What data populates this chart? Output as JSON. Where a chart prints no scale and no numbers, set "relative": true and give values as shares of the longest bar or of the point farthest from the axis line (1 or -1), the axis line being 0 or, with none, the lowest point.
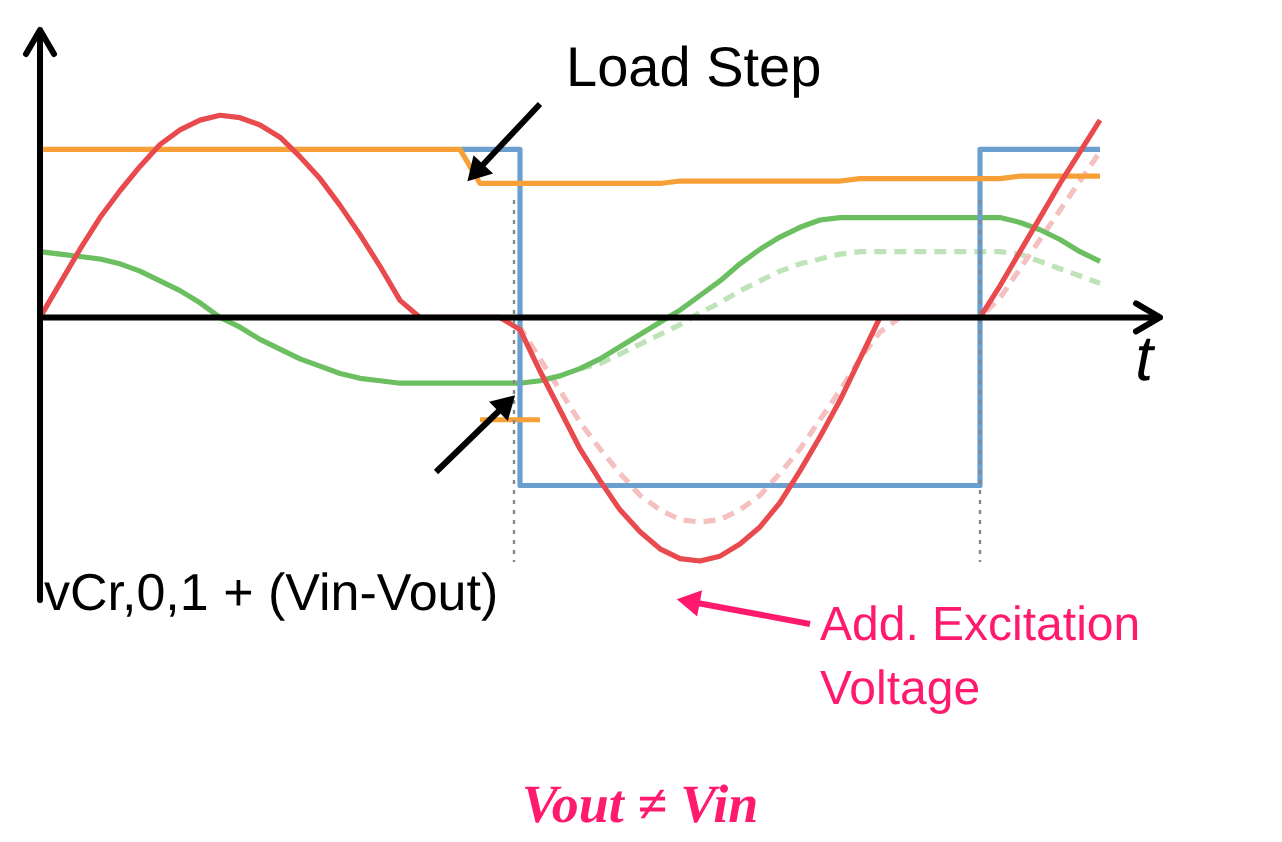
{
  "chart_data": {
    "type": "line",
    "relative": true,
    "xlabel": "t",
    "categories": [
      null,
      null,
      null,
      null,
      null,
      null,
      null,
      null,
      null,
      null,
      null,
      null,
      null,
      null,
      null,
      null,
      null,
      null,
      null,
      null,
      null,
      null,
      null,
      null,
      null,
      null,
      null,
      null,
      null,
      null,
      null,
      null,
      null,
      null,
      null,
      null,
      null,
      null,
      null,
      null,
      null,
      null,
      null,
      null,
      null,
      null,
      null,
      null,
      null,
      null,
      null,
      null,
      null,
      null
    ],
    "series": [
      {
        "line_style": "dashed",
        "color": "#bfe3b8",
        "values": [
          null,
          null,
          null,
          null,
          null,
          null,
          null,
          null,
          null,
          null,
          null,
          null,
          null,
          null,
          null,
          null,
          null,
          null,
          null,
          null,
          null,
          null,
          null,
          null,
          null,
          null,
          null,
          -0.21,
          -0.19,
          -0.15,
          -0.11,
          -0.07,
          -0.03,
          0.02,
          0.06,
          0.11,
          0.15,
          0.19,
          0.22,
          0.24,
          0.26,
          0.27,
          0.27,
          0.27,
          0.27,
          0.27,
          0.27,
          0.27,
          0.27,
          0.26,
          0.23,
          0.2,
          0.17,
          0.14
        ]
      },
      {
        "line_style": "dashed",
        "color": "#f5c0c0",
        "values": [
          null,
          null,
          null,
          null,
          null,
          null,
          null,
          null,
          null,
          null,
          null,
          null,
          null,
          null,
          null,
          null,
          null,
          null,
          null,
          null,
          null,
          null,
          null,
          0,
          -0.04,
          -0.17,
          -0.3,
          -0.43,
          -0.54,
          -0.64,
          -0.73,
          -0.79,
          -0.83,
          -0.84,
          -0.83,
          -0.79,
          -0.73,
          -0.64,
          -0.54,
          -0.42,
          -0.3,
          -0.17,
          -0.06,
          0,
          0,
          0,
          0,
          0,
          0.08,
          0.2,
          0.32,
          0.44,
          0.56,
          0.68
        ]
      },
      {
        "color": "#6cbf60",
        "values": [
          0.27,
          0.26,
          0.25,
          0.24,
          0.22,
          0.19,
          0.15,
          0.11,
          0.06,
          0.0,
          -0.04,
          -0.09,
          -0.13,
          -0.17,
          -0.2,
          -0.23,
          -0.25,
          -0.26,
          -0.27,
          -0.27,
          -0.27,
          -0.27,
          -0.27,
          -0.27,
          -0.27,
          -0.26,
          -0.24,
          -0.21,
          -0.17,
          -0.12,
          -0.07,
          -0.02,
          0.03,
          0.09,
          0.15,
          0.22,
          0.28,
          0.33,
          0.37,
          0.4,
          0.41,
          0.41,
          0.41,
          0.41,
          0.41,
          0.41,
          0.41,
          0.41,
          0.41,
          0.39,
          0.36,
          0.32,
          0.27,
          0.23
        ]
      },
      {
        "type": "step",
        "color": "#6b9fd0",
        "values": [
          null,
          null,
          null,
          null,
          null,
          null,
          null,
          null,
          null,
          null,
          null,
          null,
          null,
          null,
          null,
          null,
          null,
          null,
          null,
          null,
          null,
          0.69,
          0.69,
          0.69,
          -0.69,
          -0.69,
          -0.69,
          -0.69,
          -0.69,
          -0.69,
          -0.69,
          -0.69,
          -0.69,
          -0.69,
          -0.69,
          -0.69,
          -0.69,
          -0.69,
          -0.69,
          -0.69,
          -0.69,
          -0.69,
          -0.69,
          -0.69,
          -0.69,
          -0.69,
          -0.69,
          0.69,
          0.69,
          0.69,
          0.69,
          0.69,
          0.69,
          0.69
        ]
      },
      {
        "color": "#f7a038",
        "values": [
          0.69,
          0.69,
          0.69,
          0.69,
          0.69,
          0.69,
          0.69,
          0.69,
          0.69,
          0.69,
          0.69,
          0.69,
          0.69,
          0.69,
          0.69,
          0.69,
          0.69,
          0.69,
          0.69,
          0.69,
          0.69,
          0.69,
          0.55,
          0.55,
          0.55,
          0.55,
          0.55,
          0.55,
          0.55,
          0.55,
          0.55,
          0.55,
          0.56,
          0.56,
          0.56,
          0.56,
          0.56,
          0.56,
          0.56,
          0.56,
          0.56,
          0.57,
          0.57,
          0.57,
          0.57,
          0.57,
          0.57,
          0.57,
          0.57,
          0.58,
          0.58,
          0.58,
          0.58,
          0.58
        ]
      },
      {
        "color": "#e84a4d",
        "values": [
          0,
          0.14,
          0.28,
          0.41,
          0.52,
          0.62,
          0.71,
          0.77,
          0.81,
          0.83,
          0.82,
          0.79,
          0.74,
          0.66,
          0.57,
          0.46,
          0.34,
          0.21,
          0.07,
          0,
          0,
          0,
          0,
          0,
          -0.05,
          -0.22,
          -0.38,
          -0.54,
          -0.67,
          -0.79,
          -0.88,
          -0.95,
          -0.99,
          -1,
          -0.98,
          -0.93,
          -0.86,
          -0.76,
          -0.63,
          -0.49,
          -0.34,
          -0.17,
          0,
          0,
          0,
          0,
          0,
          0,
          0.13,
          0.27,
          0.41,
          0.55,
          0.68,
          0.81
        ]
      },
      {
        "color": "#f7a038",
        "values": [
          null,
          null,
          null,
          null,
          null,
          null,
          null,
          null,
          null,
          null,
          null,
          null,
          null,
          null,
          null,
          null,
          null,
          null,
          null,
          null,
          null,
          null,
          -0.42,
          -0.42,
          -0.42,
          -0.42,
          null,
          null,
          null,
          null,
          null,
          null,
          null,
          null,
          null,
          null,
          null,
          null,
          null,
          null,
          null,
          null,
          null,
          null,
          null,
          null,
          null,
          null,
          null,
          null,
          null,
          null,
          null,
          null
        ]
      }
    ],
    "annotations": [
      "Load Step",
      "vCr,0,1 + (Vin-Vout)",
      "Add. Excitation Voltage",
      "Vout ≠ Vin"
    ]
  }
}
